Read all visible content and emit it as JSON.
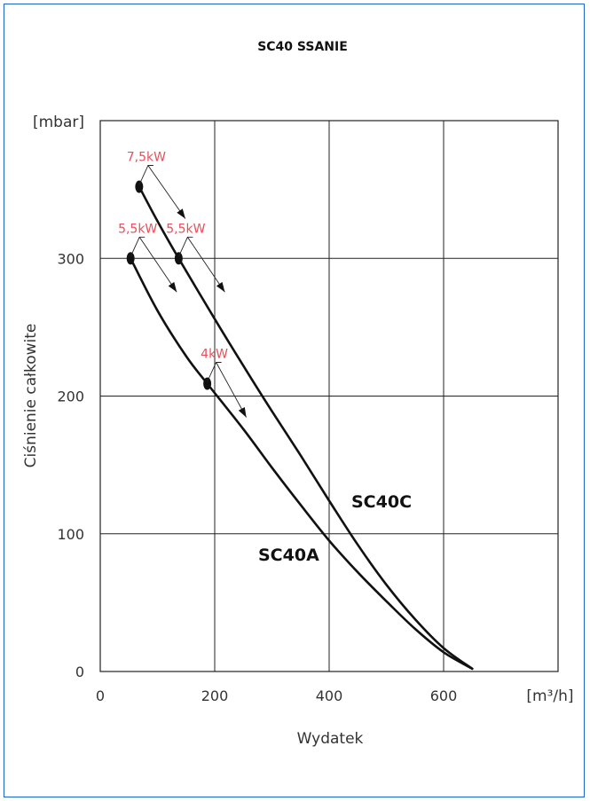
{
  "chart_data": {
    "type": "line",
    "title": "SC40 SSANIE",
    "xlabel": "Wydatek",
    "ylabel": "Ciśnienie całkowite",
    "x_unit": "[m³/h]",
    "y_unit": "[mbar]",
    "xlim": [
      0,
      800
    ],
    "ylim": [
      0,
      400
    ],
    "xticks": [
      0,
      200,
      400,
      600
    ],
    "yticks": [
      0,
      100,
      200,
      300
    ],
    "grid": true,
    "series": [
      {
        "name": "SC40A",
        "x": [
          53,
          100,
          150,
          187,
          250,
          300,
          350,
          400,
          450,
          500,
          550,
          600,
          650
        ],
        "y": [
          300,
          262,
          229,
          209,
          176,
          148,
          121,
          95,
          72,
          51,
          31,
          14,
          2
        ]
      },
      {
        "name": "SC40C",
        "x": [
          68,
          100,
          137,
          200,
          250,
          300,
          350,
          400,
          450,
          500,
          550,
          600,
          650
        ],
        "y": [
          352,
          327,
          300,
          256,
          222,
          189,
          157,
          124,
          92,
          63,
          38,
          17,
          2
        ]
      }
    ],
    "annotations": [
      {
        "label": "5,5kW",
        "series": "SC40A",
        "x": 53,
        "y": 300
      },
      {
        "label": "4kW",
        "series": "SC40A",
        "x": 187,
        "y": 209
      },
      {
        "label": "7,5kW",
        "series": "SC40C",
        "x": 68,
        "y": 352
      },
      {
        "label": "5,5kW",
        "series": "SC40C",
        "x": 137,
        "y": 300
      }
    ],
    "colors": {
      "frame": "#1d67c4",
      "curve": "#111111",
      "grid": "#222222",
      "power_label": "#e8505b"
    }
  }
}
